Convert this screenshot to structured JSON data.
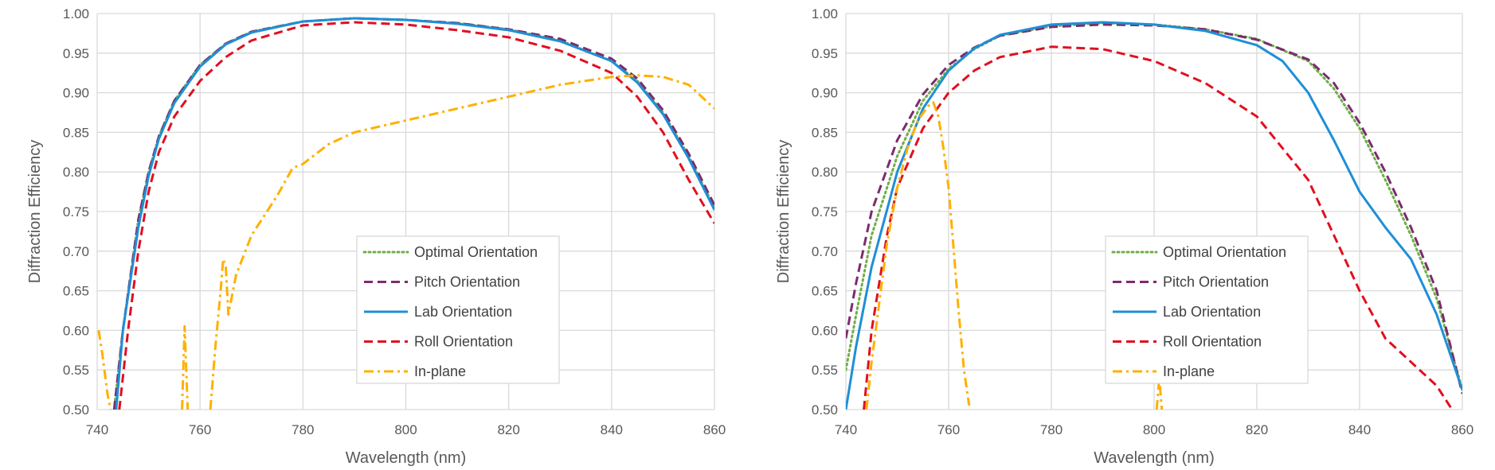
{
  "chart_data": [
    {
      "type": "line",
      "title": "",
      "xlabel": "Wavelength (nm)",
      "ylabel": "Diffraction Efficiency",
      "xlim": [
        740,
        860
      ],
      "ylim": [
        0.5,
        1.0
      ],
      "xticks": [
        "740",
        "760",
        "780",
        "800",
        "820",
        "840",
        "860"
      ],
      "yticks": [
        "0.50",
        "0.55",
        "0.60",
        "0.65",
        "0.70",
        "0.75",
        "0.80",
        "0.85",
        "0.90",
        "0.95",
        "1.00"
      ],
      "grid": true,
      "legend_position": "lower-right",
      "series": [
        {
          "name": "Optimal Orientation",
          "color": "#70ad47",
          "dash": "dotted",
          "points": [
            [
              743.3,
              0.5
            ],
            [
              745,
              0.6
            ],
            [
              748,
              0.74
            ],
            [
              750,
              0.8
            ],
            [
              752,
              0.845
            ],
            [
              755,
              0.89
            ],
            [
              760,
              0.935
            ],
            [
              765,
              0.962
            ],
            [
              770,
              0.977
            ],
            [
              780,
              0.99
            ],
            [
              790,
              0.994
            ],
            [
              800,
              0.992
            ],
            [
              810,
              0.988
            ],
            [
              820,
              0.98
            ],
            [
              830,
              0.966
            ],
            [
              840,
              0.94
            ],
            [
              845,
              0.915
            ],
            [
              850,
              0.875
            ],
            [
              855,
              0.82
            ],
            [
              860,
              0.755
            ]
          ]
        },
        {
          "name": "Pitch Orientation",
          "color": "#7b2c6e",
          "dash": "dashed",
          "points": [
            [
              743.3,
              0.5
            ],
            [
              745,
              0.6
            ],
            [
              748,
              0.74
            ],
            [
              750,
              0.8
            ],
            [
              752,
              0.845
            ],
            [
              755,
              0.89
            ],
            [
              760,
              0.935
            ],
            [
              765,
              0.962
            ],
            [
              770,
              0.977
            ],
            [
              780,
              0.99
            ],
            [
              790,
              0.994
            ],
            [
              800,
              0.992
            ],
            [
              810,
              0.988
            ],
            [
              820,
              0.98
            ],
            [
              830,
              0.968
            ],
            [
              840,
              0.943
            ],
            [
              845,
              0.918
            ],
            [
              850,
              0.878
            ],
            [
              855,
              0.823
            ],
            [
              860,
              0.758
            ]
          ]
        },
        {
          "name": "Lab Orientation",
          "color": "#1f8fd6",
          "dash": "solid",
          "points": [
            [
              743.7,
              0.5
            ],
            [
              745,
              0.6
            ],
            [
              748,
              0.73
            ],
            [
              750,
              0.795
            ],
            [
              752,
              0.842
            ],
            [
              755,
              0.887
            ],
            [
              760,
              0.933
            ],
            [
              765,
              0.961
            ],
            [
              770,
              0.976
            ],
            [
              780,
              0.99
            ],
            [
              790,
              0.994
            ],
            [
              800,
              0.992
            ],
            [
              810,
              0.987
            ],
            [
              820,
              0.979
            ],
            [
              830,
              0.965
            ],
            [
              840,
              0.94
            ],
            [
              845,
              0.913
            ],
            [
              850,
              0.873
            ],
            [
              855,
              0.817
            ],
            [
              860,
              0.752
            ]
          ]
        },
        {
          "name": "Roll Orientation",
          "color": "#e0101f",
          "dash": "dashed",
          "points": [
            [
              744.3,
              0.5
            ],
            [
              746,
              0.6
            ],
            [
              748,
              0.7
            ],
            [
              750,
              0.775
            ],
            [
              752,
              0.825
            ],
            [
              755,
              0.87
            ],
            [
              760,
              0.915
            ],
            [
              765,
              0.945
            ],
            [
              770,
              0.966
            ],
            [
              780,
              0.985
            ],
            [
              790,
              0.989
            ],
            [
              800,
              0.986
            ],
            [
              810,
              0.979
            ],
            [
              820,
              0.97
            ],
            [
              830,
              0.953
            ],
            [
              840,
              0.925
            ],
            [
              845,
              0.895
            ],
            [
              850,
              0.85
            ],
            [
              855,
              0.79
            ],
            [
              860,
              0.735
            ]
          ]
        },
        {
          "name": "In-plane",
          "color": "#ffb000",
          "dash": "dashdot",
          "segments": [
            [
              [
                740.3,
                0.6
              ],
              [
                741,
                0.57
              ],
              [
                742,
                0.52
              ],
              [
                742.6,
                0.5
              ]
            ],
            [
              [
                756.5,
                0.5
              ],
              [
                757,
                0.605
              ],
              [
                757.6,
                0.5
              ]
            ],
            [
              [
                762,
                0.5
              ],
              [
                763,
                0.58
              ],
              [
                764,
                0.65
              ],
              [
                764.5,
                0.69
              ],
              [
                765,
                0.68
              ],
              [
                765.5,
                0.62
              ],
              [
                767,
                0.67
              ],
              [
                770,
                0.72
              ],
              [
                775,
                0.77
              ],
              [
                778,
                0.805
              ],
              [
                780,
                0.81
              ],
              [
                785,
                0.835
              ],
              [
                790,
                0.85
              ],
              [
                800,
                0.865
              ],
              [
                810,
                0.88
              ],
              [
                820,
                0.895
              ],
              [
                830,
                0.91
              ],
              [
                840,
                0.92
              ],
              [
                845,
                0.922
              ],
              [
                850,
                0.92
              ],
              [
                855,
                0.91
              ],
              [
                860,
                0.88
              ]
            ]
          ]
        }
      ]
    },
    {
      "type": "line",
      "title": "",
      "xlabel": "Wavelength (nm)",
      "ylabel": "Diffraction Efficiency",
      "xlim": [
        740,
        860
      ],
      "ylim": [
        0.5,
        1.0
      ],
      "xticks": [
        "740",
        "760",
        "780",
        "800",
        "820",
        "840",
        "860"
      ],
      "yticks": [
        "0.50",
        "0.55",
        "0.60",
        "0.65",
        "0.70",
        "0.75",
        "0.80",
        "0.85",
        "0.90",
        "0.95",
        "1.00"
      ],
      "grid": true,
      "legend_position": "lower-center",
      "series": [
        {
          "name": "Optimal Orientation",
          "color": "#70ad47",
          "dash": "dotted",
          "points": [
            [
              740,
              0.55
            ],
            [
              742,
              0.62
            ],
            [
              745,
              0.72
            ],
            [
              750,
              0.82
            ],
            [
              755,
              0.89
            ],
            [
              760,
              0.93
            ],
            [
              765,
              0.955
            ],
            [
              770,
              0.972
            ],
            [
              780,
              0.984
            ],
            [
              790,
              0.988
            ],
            [
              800,
              0.986
            ],
            [
              810,
              0.98
            ],
            [
              820,
              0.968
            ],
            [
              830,
              0.94
            ],
            [
              835,
              0.905
            ],
            [
              840,
              0.855
            ],
            [
              845,
              0.79
            ],
            [
              850,
              0.72
            ],
            [
              855,
              0.64
            ],
            [
              860,
              0.525
            ]
          ]
        },
        {
          "name": "Pitch Orientation",
          "color": "#7b2c6e",
          "dash": "dashed",
          "points": [
            [
              740,
              0.59
            ],
            [
              742,
              0.66
            ],
            [
              745,
              0.75
            ],
            [
              750,
              0.84
            ],
            [
              755,
              0.898
            ],
            [
              760,
              0.935
            ],
            [
              765,
              0.957
            ],
            [
              770,
              0.972
            ],
            [
              780,
              0.983
            ],
            [
              790,
              0.986
            ],
            [
              800,
              0.985
            ],
            [
              810,
              0.98
            ],
            [
              820,
              0.967
            ],
            [
              830,
              0.942
            ],
            [
              835,
              0.912
            ],
            [
              840,
              0.862
            ],
            [
              845,
              0.8
            ],
            [
              850,
              0.73
            ],
            [
              855,
              0.65
            ],
            [
              860,
              0.52
            ]
          ]
        },
        {
          "name": "Lab Orientation",
          "color": "#1f8fd6",
          "dash": "solid",
          "points": [
            [
              740,
              0.5
            ],
            [
              742,
              0.58
            ],
            [
              745,
              0.68
            ],
            [
              750,
              0.8
            ],
            [
              755,
              0.88
            ],
            [
              760,
              0.928
            ],
            [
              765,
              0.956
            ],
            [
              770,
              0.973
            ],
            [
              780,
              0.986
            ],
            [
              790,
              0.989
            ],
            [
              800,
              0.986
            ],
            [
              810,
              0.978
            ],
            [
              820,
              0.96
            ],
            [
              825,
              0.94
            ],
            [
              830,
              0.9
            ],
            [
              835,
              0.84
            ],
            [
              840,
              0.775
            ],
            [
              845,
              0.73
            ],
            [
              850,
              0.69
            ],
            [
              855,
              0.62
            ],
            [
              860,
              0.525
            ]
          ]
        },
        {
          "name": "Roll Orientation",
          "color": "#e0101f",
          "dash": "dashed",
          "points": [
            [
              743.5,
              0.5
            ],
            [
              745,
              0.6
            ],
            [
              748,
              0.72
            ],
            [
              750,
              0.78
            ],
            [
              755,
              0.855
            ],
            [
              760,
              0.9
            ],
            [
              765,
              0.928
            ],
            [
              770,
              0.945
            ],
            [
              780,
              0.958
            ],
            [
              790,
              0.955
            ],
            [
              800,
              0.94
            ],
            [
              810,
              0.912
            ],
            [
              820,
              0.87
            ],
            [
              830,
              0.79
            ],
            [
              835,
              0.72
            ],
            [
              840,
              0.65
            ],
            [
              845,
              0.59
            ],
            [
              850,
              0.56
            ],
            [
              855,
              0.53
            ],
            [
              858,
              0.5
            ]
          ]
        },
        {
          "name": "In-plane",
          "color": "#ffb000",
          "dash": "dashdot",
          "segments": [
            [
              [
                744,
                0.5
              ],
              [
                745,
                0.56
              ],
              [
                748,
                0.71
              ],
              [
                750,
                0.78
              ],
              [
                752,
                0.83
              ],
              [
                754,
                0.865
              ],
              [
                756,
                0.883
              ],
              [
                757,
                0.888
              ],
              [
                758,
                0.87
              ],
              [
                759,
                0.83
              ],
              [
                760,
                0.78
              ],
              [
                761,
                0.7
              ],
              [
                762,
                0.62
              ],
              [
                763,
                0.55
              ],
              [
                764,
                0.505
              ]
            ],
            [
              [
                800.5,
                0.5
              ],
              [
                801,
                0.54
              ],
              [
                801.5,
                0.5
              ]
            ]
          ]
        }
      ]
    }
  ]
}
